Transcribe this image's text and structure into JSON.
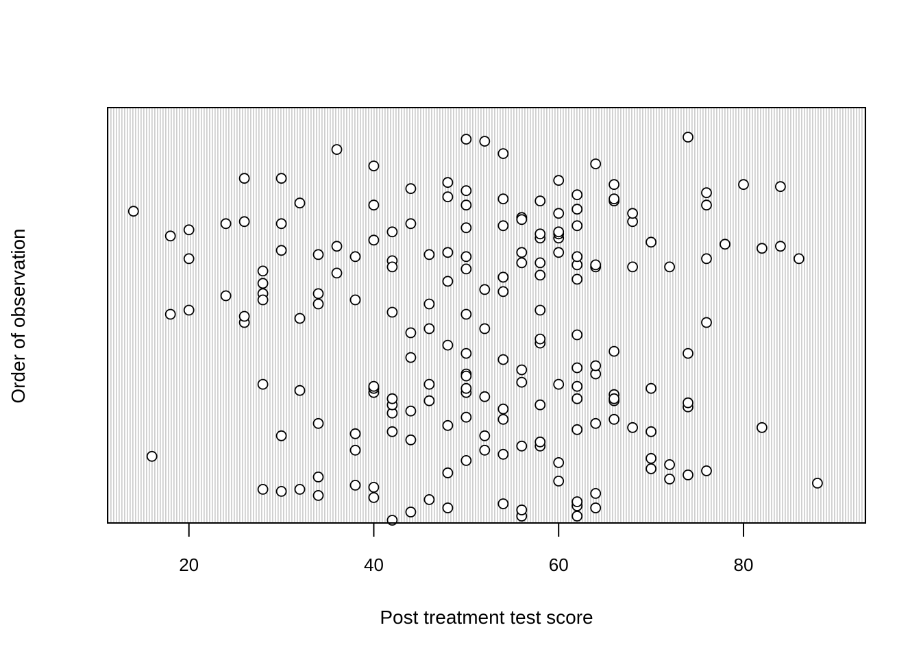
{
  "chart_data": {
    "type": "scatter",
    "title": "",
    "xlabel": "Post treatment test score",
    "ylabel": "Order of observation",
    "x_ticks": [
      20,
      40,
      60,
      80
    ],
    "x_tick_labels": [
      "20",
      "40",
      "60",
      "80"
    ],
    "xlim": [
      11.2,
      93.2
    ],
    "ylim": [
      1,
      200
    ],
    "grid": "dense light-grey dotted vertical lines",
    "y_ticks_shown": false,
    "point_style": "open circle",
    "x": [
      42,
      56,
      62,
      44,
      62,
      56,
      64,
      54,
      46,
      48,
      40,
      62,
      34,
      64,
      32,
      30,
      40,
      38,
      88,
      28,
      60,
      72,
      34,
      48,
      74,
      76,
      70,
      72,
      16,
      50,
      54,
      52,
      38,
      60,
      70,
      58,
      56,
      30,
      70,
      58,
      44,
      52,
      62,
      42,
      38,
      34,
      64,
      54,
      48,
      42,
      68,
      82,
      66,
      74,
      50,
      66,
      44,
      32,
      66,
      52,
      74,
      54,
      62,
      42,
      58,
      46,
      40,
      66,
      62,
      50,
      46,
      50,
      70,
      64,
      50,
      42,
      56,
      28,
      56,
      60,
      40,
      50,
      40,
      62,
      74,
      64,
      54,
      66,
      58,
      62,
      48,
      58,
      44,
      50,
      46,
      76,
      52,
      26,
      44,
      32,
      50,
      20,
      18,
      42,
      28,
      34,
      28,
      54,
      34,
      24,
      52,
      58,
      26,
      38,
      46,
      64,
      48,
      54,
      62,
      28,
      36,
      50,
      68,
      62,
      72,
      58,
      56,
      64,
      42,
      20,
      46,
      60,
      62,
      48,
      56,
      78,
      38,
      50,
      28,
      54,
      42,
      84,
      36,
      58,
      70,
      60,
      44,
      40,
      82,
      18,
      58,
      86,
      76,
      30,
      58,
      34,
      26,
      68,
      66,
      32,
      60,
      66,
      62,
      66,
      48,
      44,
      84,
      30,
      26,
      76,
      40,
      50,
      50,
      14,
      56,
      56,
      68,
      60,
      42,
      24,
      30,
      62,
      54,
      20,
      50,
      60,
      80,
      62,
      54,
      58,
      76,
      60,
      48,
      54,
      64,
      36,
      40,
      52,
      74,
      50
    ],
    "y": [
      1,
      3,
      3,
      5,
      8,
      6,
      7,
      9,
      11,
      7,
      12,
      10,
      13,
      14,
      16,
      15,
      17,
      18,
      19,
      16,
      20,
      21,
      22,
      24,
      23,
      25,
      26,
      28,
      32,
      30,
      33,
      35,
      35,
      29,
      31,
      37,
      37,
      42,
      44,
      39,
      40,
      42,
      45,
      44,
      43,
      48,
      48,
      50,
      47,
      53,
      46,
      46,
      50,
      56,
      51,
      59,
      54,
      64,
      62,
      61,
      58,
      55,
      60,
      57,
      57,
      59,
      63,
      60,
      66,
      63,
      67,
      65,
      65,
      72,
      72,
      60,
      68,
      67,
      74,
      67,
      65,
      71,
      66,
      75,
      82,
      76,
      79,
      83,
      87,
      91,
      86,
      89,
      80,
      82,
      94,
      97,
      94,
      97,
      92,
      99,
      101,
      103,
      101,
      102,
      111,
      111,
      108,
      112,
      106,
      110,
      113,
      103,
      100,
      108,
      106,
      124,
      117,
      119,
      118,
      122,
      121,
      123,
      124,
      125,
      124,
      120,
      126,
      125,
      127,
      128,
      130,
      131,
      129,
      131,
      131,
      135,
      129,
      129,
      116,
      119,
      124,
      134,
      134,
      138,
      136,
      138,
      145,
      137,
      133,
      139,
      140,
      128,
      128,
      132,
      126,
      130,
      146,
      146,
      156,
      155,
      150,
      157,
      152,
      164,
      165,
      162,
      163,
      167,
      167,
      154,
      154,
      154,
      161,
      151,
      148,
      147,
      150,
      140,
      141,
      145,
      145,
      144,
      144,
      142,
      143,
      141,
      164,
      159,
      157,
      156,
      160,
      166,
      158,
      179,
      174,
      181,
      173,
      185,
      187,
      186
    ]
  }
}
